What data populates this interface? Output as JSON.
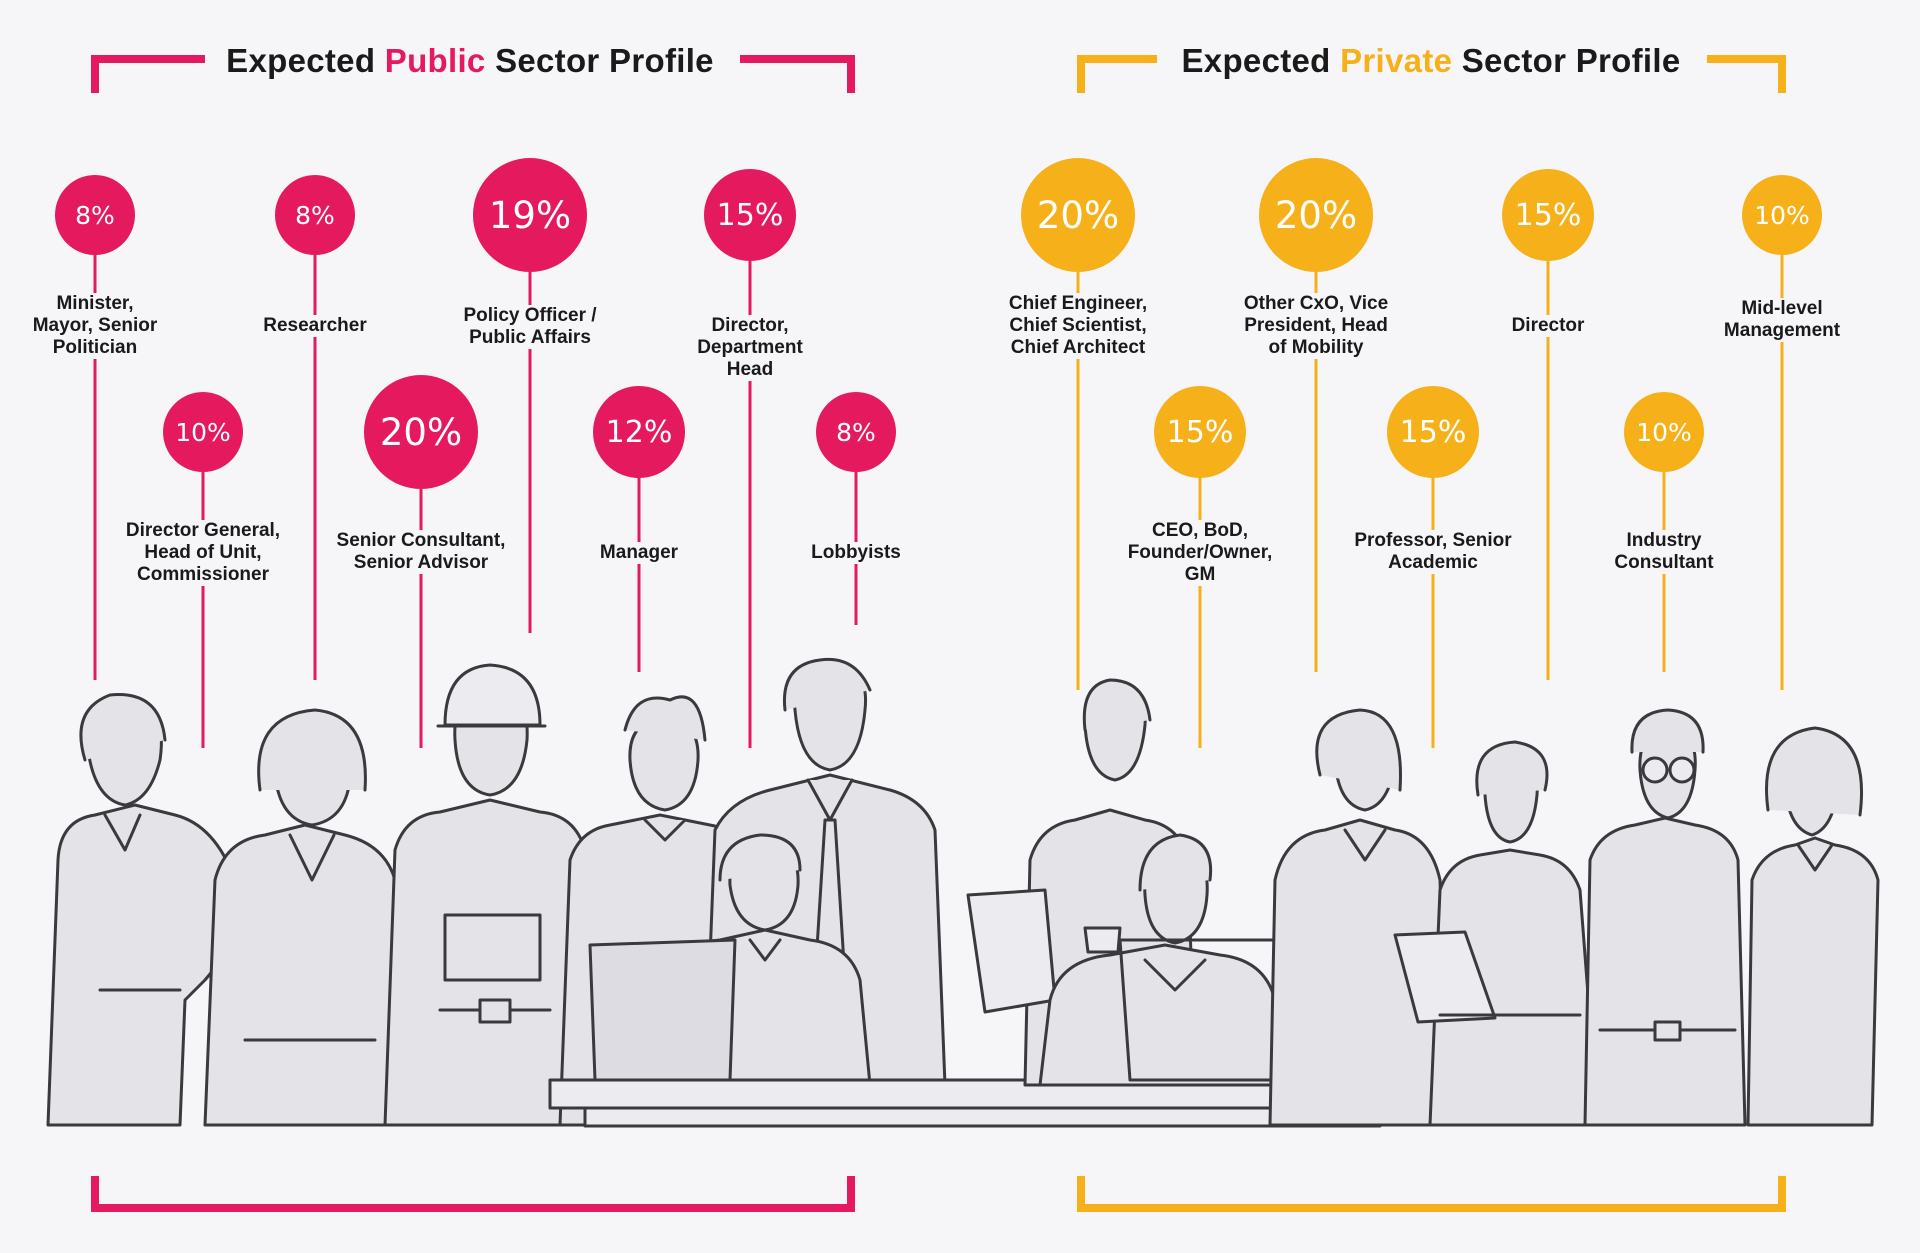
{
  "public": {
    "title_before": "Expected ",
    "title_highlight": "Public",
    "title_after": " Sector Profile",
    "color": "#e5195e",
    "roles": [
      {
        "pct": "8%",
        "label": "Minister,\nMayor, Senior\nPolitician"
      },
      {
        "pct": "10%",
        "label": "Director General,\nHead of Unit,\nCommissioner"
      },
      {
        "pct": "8%",
        "label": "Researcher"
      },
      {
        "pct": "20%",
        "label": "Senior Consultant,\nSenior Advisor"
      },
      {
        "pct": "19%",
        "label": "Policy Officer /\nPublic Affairs"
      },
      {
        "pct": "12%",
        "label": "Manager"
      },
      {
        "pct": "15%",
        "label": "Director,\nDepartment\nHead"
      },
      {
        "pct": "8%",
        "label": "Lobbyists"
      }
    ]
  },
  "private": {
    "title_before": "Expected ",
    "title_highlight": "Private",
    "title_after": " Sector Profile",
    "color": "#f6b11a",
    "roles": [
      {
        "pct": "20%",
        "label": "Chief Engineer,\nChief Scientist,\nChief Architect"
      },
      {
        "pct": "15%",
        "label": "CEO, BoD,\nFounder/Owner,\nGM"
      },
      {
        "pct": "20%",
        "label": "Other CxO, Vice\nPresident, Head\nof Mobility"
      },
      {
        "pct": "15%",
        "label": "Professor, Senior\nAcademic"
      },
      {
        "pct": "15%",
        "label": "Director"
      },
      {
        "pct": "10%",
        "label": "Industry\nConsultant"
      },
      {
        "pct": "10%",
        "label": "Mid-level\nManagement"
      }
    ]
  },
  "colors": {
    "figure_fill": "#e4e4e8",
    "figure_stroke": "#3a3a3e",
    "background": "#f6f5f8"
  }
}
